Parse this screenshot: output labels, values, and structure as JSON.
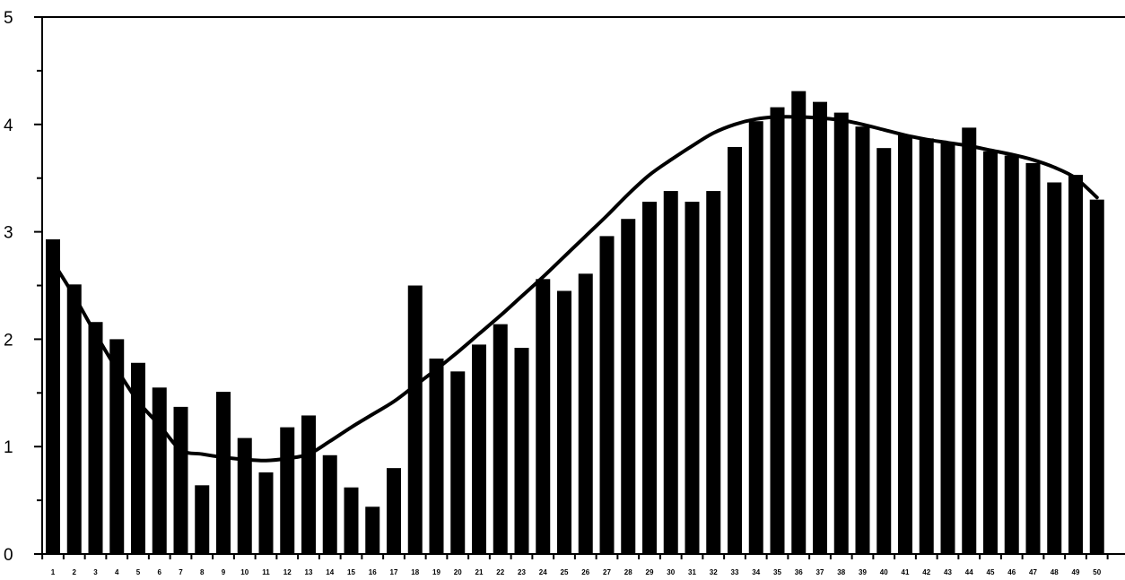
{
  "chart_data": {
    "type": "bar",
    "categories": [
      "1",
      "2",
      "3",
      "4",
      "5",
      "6",
      "7",
      "8",
      "9",
      "10",
      "11",
      "12",
      "13",
      "14",
      "15",
      "16",
      "17",
      "18",
      "19",
      "20",
      "21",
      "22",
      "23",
      "24",
      "25",
      "26",
      "27",
      "28",
      "29",
      "30",
      "31",
      "32",
      "33",
      "34",
      "35",
      "36",
      "37",
      "38",
      "39",
      "40",
      "41",
      "42",
      "43",
      "44",
      "45",
      "46",
      "47",
      "48",
      "49",
      "50"
    ],
    "series": [
      {
        "type": "bar",
        "values": [
          2.93,
          2.51,
          2.16,
          2.0,
          1.78,
          1.55,
          1.37,
          0.64,
          1.51,
          1.08,
          0.76,
          1.18,
          1.29,
          0.92,
          0.62,
          0.44,
          0.8,
          2.5,
          1.82,
          1.7,
          1.95,
          2.14,
          1.92,
          2.56,
          2.45,
          2.61,
          2.96,
          3.12,
          3.28,
          3.38,
          3.28,
          3.38,
          3.79,
          4.03,
          4.16,
          4.31,
          4.21,
          4.11,
          3.98,
          3.78,
          3.9,
          3.87,
          3.83,
          3.97,
          3.75,
          3.71,
          3.64,
          3.46,
          3.53,
          3.3
        ]
      },
      {
        "type": "line",
        "values": [
          2.72,
          2.4,
          2.05,
          1.72,
          1.42,
          1.2,
          0.97,
          0.93,
          0.9,
          0.88,
          0.87,
          0.89,
          0.93,
          1.05,
          1.18,
          1.3,
          1.42,
          1.57,
          1.72,
          1.88,
          2.05,
          2.22,
          2.4,
          2.58,
          2.77,
          2.96,
          3.15,
          3.35,
          3.53,
          3.67,
          3.8,
          3.92,
          4.0,
          4.05,
          4.07,
          4.07,
          4.06,
          4.04,
          4.0,
          3.95,
          3.9,
          3.86,
          3.83,
          3.8,
          3.76,
          3.72,
          3.67,
          3.6,
          3.5,
          3.32
        ]
      }
    ],
    "title": "",
    "xlabel": "",
    "ylabel": "",
    "ylim": [
      0,
      5
    ],
    "yticks": [
      "0",
      "1",
      "2",
      "3",
      "4",
      "5"
    ],
    "grid": false,
    "legend": "none"
  }
}
